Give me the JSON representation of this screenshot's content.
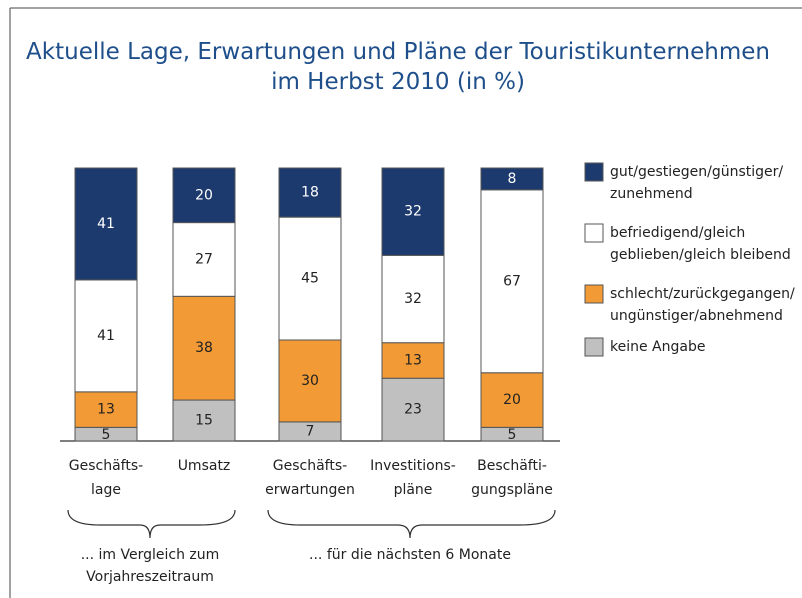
{
  "chart_data": {
    "type": "bar",
    "stacked": true,
    "title": "Aktuelle Lage, Erwartungen und Pläne der Touristikunternehmen\nim Herbst 2010 (in %)",
    "categories": [
      "Geschäfts-\nlage",
      "Umsatz",
      "Geschäfts-\nerwartungen",
      "Investitions-\npläne",
      "Beschäfti-\ngungspläne"
    ],
    "series": [
      {
        "name": "keine Angabe",
        "color": "#c0c0c0",
        "values": [
          5,
          15,
          7,
          23,
          5
        ]
      },
      {
        "name": "schlecht/zurückgegangen/\nungünstiger/abnehmend",
        "color": "#f29a35",
        "values": [
          13,
          38,
          30,
          13,
          20
        ]
      },
      {
        "name": "befriedigend/gleich\ngeblieben/gleich bleibend",
        "color": "#ffffff",
        "values": [
          41,
          27,
          45,
          32,
          67
        ]
      },
      {
        "name": "gut/gestiegen/günstiger/\nzunehmend",
        "color": "#1c3a6e",
        "values": [
          41,
          20,
          18,
          32,
          8
        ]
      }
    ],
    "annotations": [
      "... im Vergleich zum\nVorjahreszeitraum",
      "... für die nächsten 6 Monate"
    ]
  }
}
